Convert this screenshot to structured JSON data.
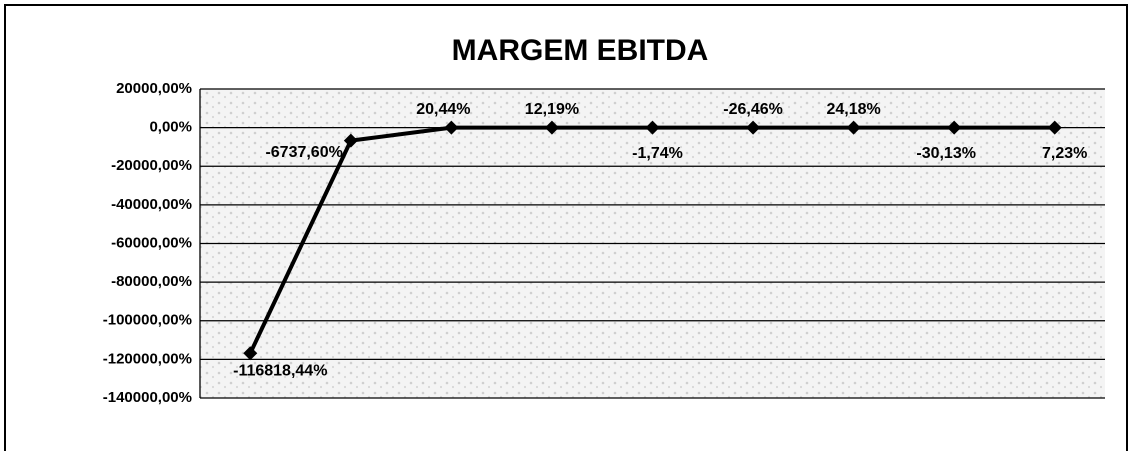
{
  "chart_data": {
    "type": "line",
    "title": "MARGEM EBITDA",
    "categories": [
      null,
      null,
      null,
      null,
      null,
      null,
      null,
      null,
      null
    ],
    "series": [
      {
        "name": null,
        "color": "#000000",
        "values": [
          -116818.44,
          -6737.6,
          20.44,
          12.19,
          -1.74,
          -26.46,
          24.18,
          -30.13,
          7.23
        ],
        "value_labels": [
          "-116818,44%",
          "-6737,60%",
          "20,44%",
          "12,19%",
          "-1,74%",
          "-26,46%",
          "24,18%",
          "-30,13%",
          "7,23%"
        ]
      }
    ],
    "ylim": [
      -140000,
      20000
    ],
    "yticks": [
      {
        "value": 20000,
        "label": "20000,00%"
      },
      {
        "value": 0,
        "label": "0,00%"
      },
      {
        "value": -20000,
        "label": "-20000,00%"
      },
      {
        "value": -40000,
        "label": "-40000,00%"
      },
      {
        "value": -60000,
        "label": "-60000,00%"
      },
      {
        "value": -80000,
        "label": "-80000,00%"
      },
      {
        "value": -100000,
        "label": "-100000,00%"
      },
      {
        "value": -120000,
        "label": "-120000,00%"
      },
      {
        "value": -140000,
        "label": "-140000,00%"
      }
    ],
    "grid": true
  }
}
